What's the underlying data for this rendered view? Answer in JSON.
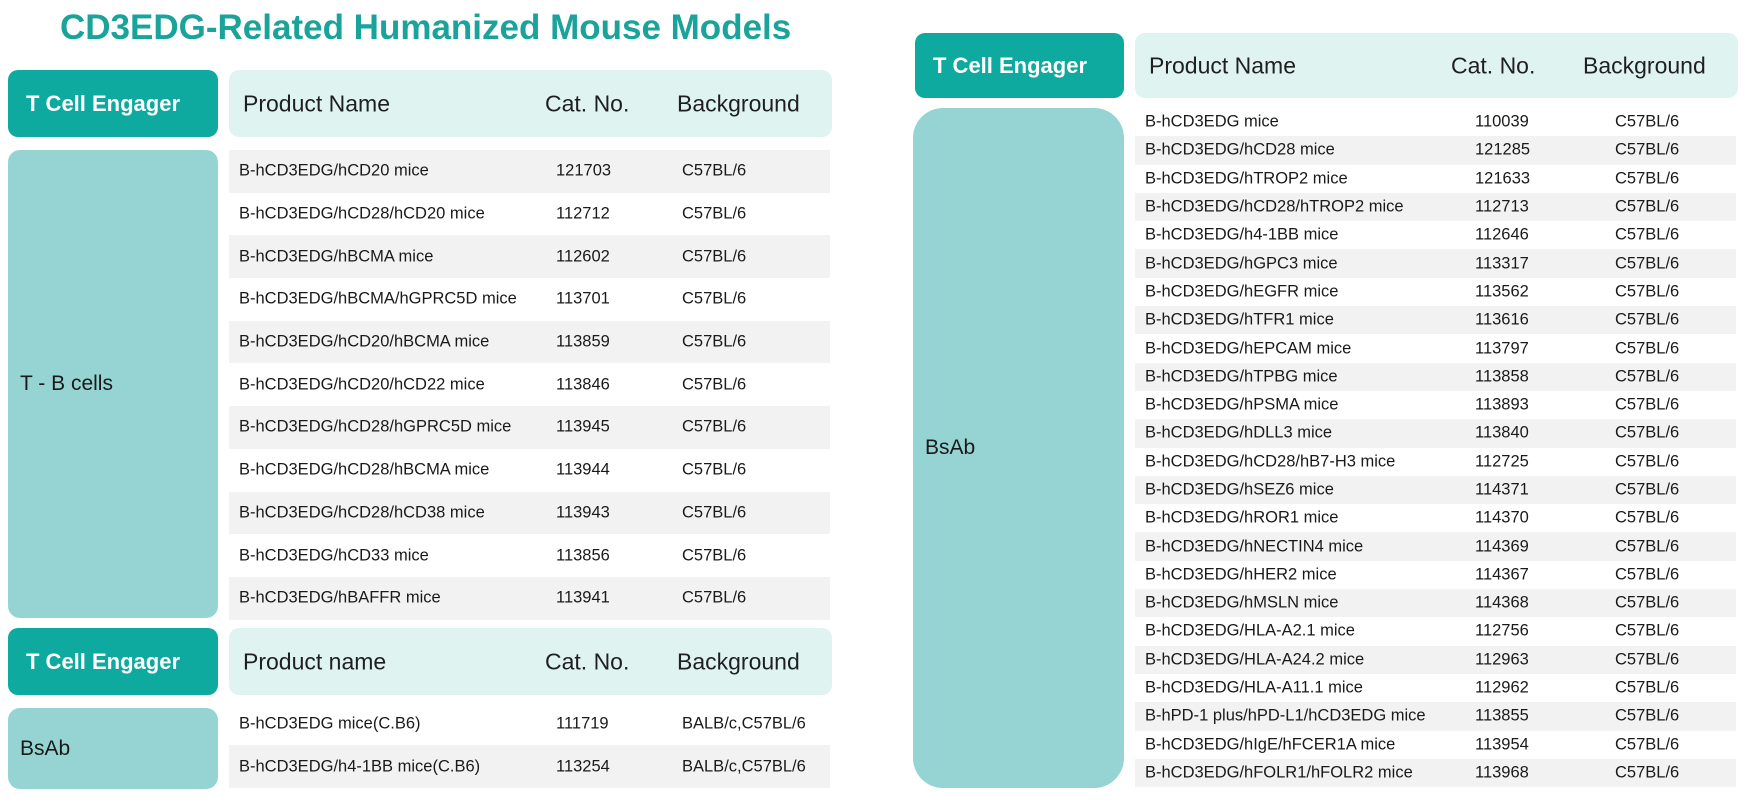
{
  "title": "CD3EDG-Related Humanized Mouse Models",
  "colors": {
    "accent": "#0faa9f",
    "title": "#1aa39b",
    "category": "#96d3d3",
    "header": "#dff4f1",
    "row_shade": "#f2f2f2"
  },
  "left_top": {
    "engager_label": "T Cell Engager",
    "headers": {
      "name": "Product Name",
      "cat": "Cat. No.",
      "bg": "Background"
    },
    "category": "T - B cells",
    "rows": [
      {
        "name": "B-hCD3EDG/hCD20 mice",
        "cat": "121703",
        "bg": "C57BL/6"
      },
      {
        "name": "B-hCD3EDG/hCD28/hCD20 mice",
        "cat": "112712",
        "bg": "C57BL/6"
      },
      {
        "name": "B-hCD3EDG/hBCMA mice",
        "cat": "112602",
        "bg": "C57BL/6"
      },
      {
        "name": "B-hCD3EDG/hBCMA/hGPRC5D mice",
        "cat": "113701",
        "bg": "C57BL/6"
      },
      {
        "name": "B-hCD3EDG/hCD20/hBCMA mice",
        "cat": "113859",
        "bg": "C57BL/6"
      },
      {
        "name": "B-hCD3EDG/hCD20/hCD22 mice",
        "cat": "113846",
        "bg": "C57BL/6"
      },
      {
        "name": "B-hCD3EDG/hCD28/hGPRC5D mice",
        "cat": "113945",
        "bg": "C57BL/6"
      },
      {
        "name": "B-hCD3EDG/hCD28/hBCMA mice",
        "cat": "113944",
        "bg": "C57BL/6"
      },
      {
        "name": "B-hCD3EDG/hCD28/hCD38 mice",
        "cat": "113943",
        "bg": "C57BL/6"
      },
      {
        "name": "B-hCD3EDG/hCD33 mice",
        "cat": "113856",
        "bg": "C57BL/6"
      },
      {
        "name": "B-hCD3EDG/hBAFFR mice",
        "cat": "113941",
        "bg": "C57BL/6"
      }
    ]
  },
  "left_bottom": {
    "engager_label": "T Cell Engager",
    "headers": {
      "name": "Product name",
      "cat": "Cat. No.",
      "bg": "Background"
    },
    "category": "BsAb",
    "rows": [
      {
        "name": "B-hCD3EDG mice(C.B6)",
        "cat": "111719",
        "bg": "BALB/c,C57BL/6"
      },
      {
        "name": "B-hCD3EDG/h4-1BB mice(C.B6)",
        "cat": "113254",
        "bg": "BALB/c,C57BL/6"
      }
    ]
  },
  "right": {
    "engager_label": "T Cell Engager",
    "headers": {
      "name": "Product Name",
      "cat": "Cat. No.",
      "bg": "Background"
    },
    "category": "BsAb",
    "rows": [
      {
        "name": "B-hCD3EDG mice",
        "cat": "110039",
        "bg": "C57BL/6"
      },
      {
        "name": "B-hCD3EDG/hCD28 mice",
        "cat": "121285",
        "bg": "C57BL/6"
      },
      {
        "name": "B-hCD3EDG/hTROP2 mice",
        "cat": "121633",
        "bg": "C57BL/6"
      },
      {
        "name": "B-hCD3EDG/hCD28/hTROP2 mice",
        "cat": "112713",
        "bg": "C57BL/6"
      },
      {
        "name": "B-hCD3EDG/h4-1BB mice",
        "cat": "112646",
        "bg": "C57BL/6"
      },
      {
        "name": "B-hCD3EDG/hGPC3 mice",
        "cat": "113317",
        "bg": "C57BL/6"
      },
      {
        "name": "B-hCD3EDG/hEGFR mice",
        "cat": "113562",
        "bg": "C57BL/6"
      },
      {
        "name": "B-hCD3EDG/hTFR1 mice",
        "cat": "113616",
        "bg": "C57BL/6"
      },
      {
        "name": "B-hCD3EDG/hEPCAM mice",
        "cat": "113797",
        "bg": "C57BL/6"
      },
      {
        "name": "B-hCD3EDG/hTPBG mice",
        "cat": "113858",
        "bg": "C57BL/6"
      },
      {
        "name": "B-hCD3EDG/hPSMA mice",
        "cat": "113893",
        "bg": "C57BL/6"
      },
      {
        "name": "B-hCD3EDG/hDLL3 mice",
        "cat": "113840",
        "bg": "C57BL/6"
      },
      {
        "name": "B-hCD3EDG/hCD28/hB7-H3 mice",
        "cat": "112725",
        "bg": "C57BL/6"
      },
      {
        "name": "B-hCD3EDG/hSEZ6 mice",
        "cat": "114371",
        "bg": "C57BL/6"
      },
      {
        "name": "B-hCD3EDG/hROR1 mice",
        "cat": "114370",
        "bg": "C57BL/6"
      },
      {
        "name": "B-hCD3EDG/hNECTIN4 mice",
        "cat": "114369",
        "bg": "C57BL/6"
      },
      {
        "name": "B-hCD3EDG/hHER2 mice",
        "cat": "114367",
        "bg": "C57BL/6"
      },
      {
        "name": "B-hCD3EDG/hMSLN mice",
        "cat": "114368",
        "bg": "C57BL/6"
      },
      {
        "name": "B-hCD3EDG/HLA-A2.1 mice",
        "cat": "112756",
        "bg": "C57BL/6"
      },
      {
        "name": "B-hCD3EDG/HLA-A24.2 mice",
        "cat": "112963",
        "bg": "C57BL/6"
      },
      {
        "name": "B-hCD3EDG/HLA-A11.1 mice",
        "cat": "112962",
        "bg": "C57BL/6"
      },
      {
        "name": "B-hPD-1 plus/hPD-L1/hCD3EDG mice",
        "cat": "113855",
        "bg": "C57BL/6"
      },
      {
        "name": "B-hCD3EDG/hIgE/hFCER1A mice",
        "cat": "113954",
        "bg": "C57BL/6"
      },
      {
        "name": "B-hCD3EDG/hFOLR1/hFOLR2 mice",
        "cat": "113968",
        "bg": "C57BL/6"
      }
    ]
  }
}
